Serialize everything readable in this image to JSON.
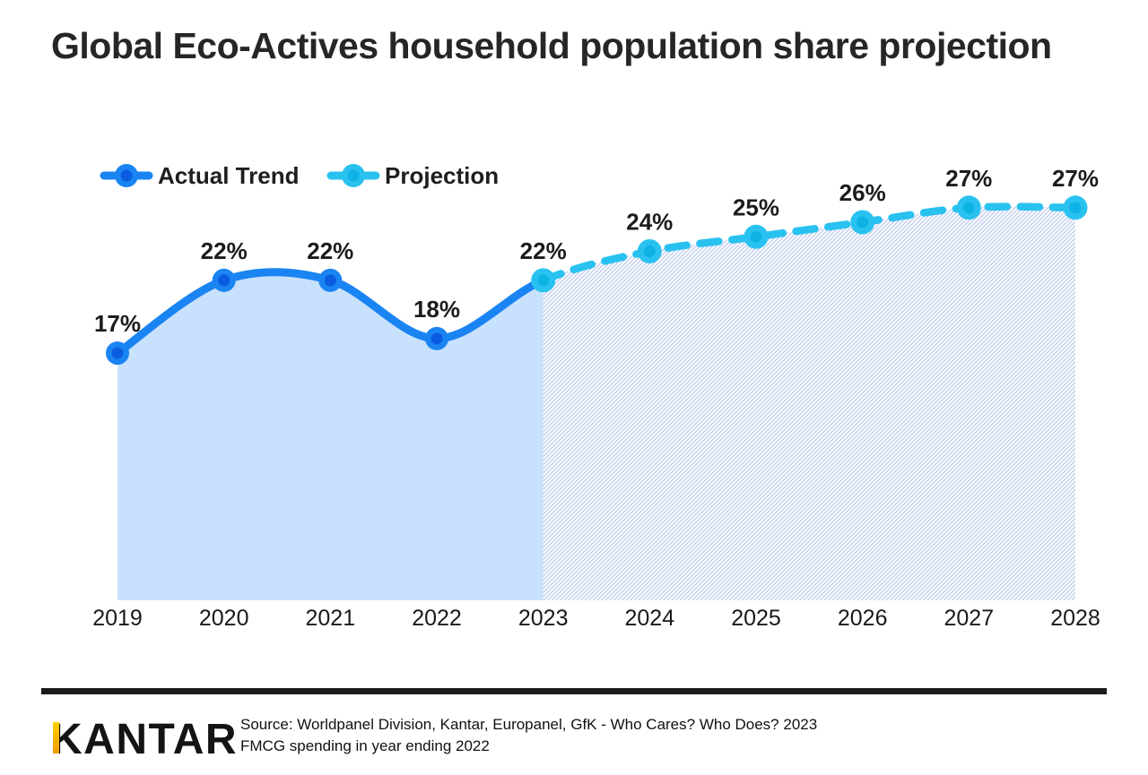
{
  "page": {
    "title": "Global Eco-Actives household population share projection"
  },
  "chart_data": {
    "type": "line",
    "title": "Global Eco-Actives household population share projection",
    "categories": [
      "2019",
      "2020",
      "2021",
      "2022",
      "2023",
      "2024",
      "2025",
      "2026",
      "2027",
      "2028"
    ],
    "series": [
      {
        "name": "Actual Trend",
        "style": "solid-line-with-area-fill",
        "values": [
          17,
          22,
          22,
          18,
          22,
          null,
          null,
          null,
          null,
          null
        ]
      },
      {
        "name": "Projection",
        "style": "dashed-line-with-hatch-fill",
        "values": [
          null,
          null,
          null,
          null,
          22,
          24,
          25,
          26,
          27,
          27
        ]
      }
    ],
    "unit": "%",
    "ylim": [
      0,
      33
    ],
    "xlabel": "",
    "ylabel": "",
    "grid": false,
    "data_labels": true,
    "legend_position": "top-left"
  },
  "footer": {
    "logo_text": "KANTAR",
    "source_line1": "Source: Worldpanel Division, Kantar, Europanel, GfK - Who Cares? Who Does? 2023",
    "source_line2": "FMCG spending in year ending 2022"
  },
  "colors": {
    "actual_line": "#1a84f2",
    "actual_marker_core": "#0b5ce0",
    "projection_line": "#29c2f0",
    "projection_marker_core": "#0eb2e5",
    "area_fill": "#c8e1fd",
    "hatch_line": "#bcc9ec",
    "title_text": "#262626",
    "logo_bar_top": "#ffcf00",
    "logo_bar_bottom": "#f29a00"
  }
}
